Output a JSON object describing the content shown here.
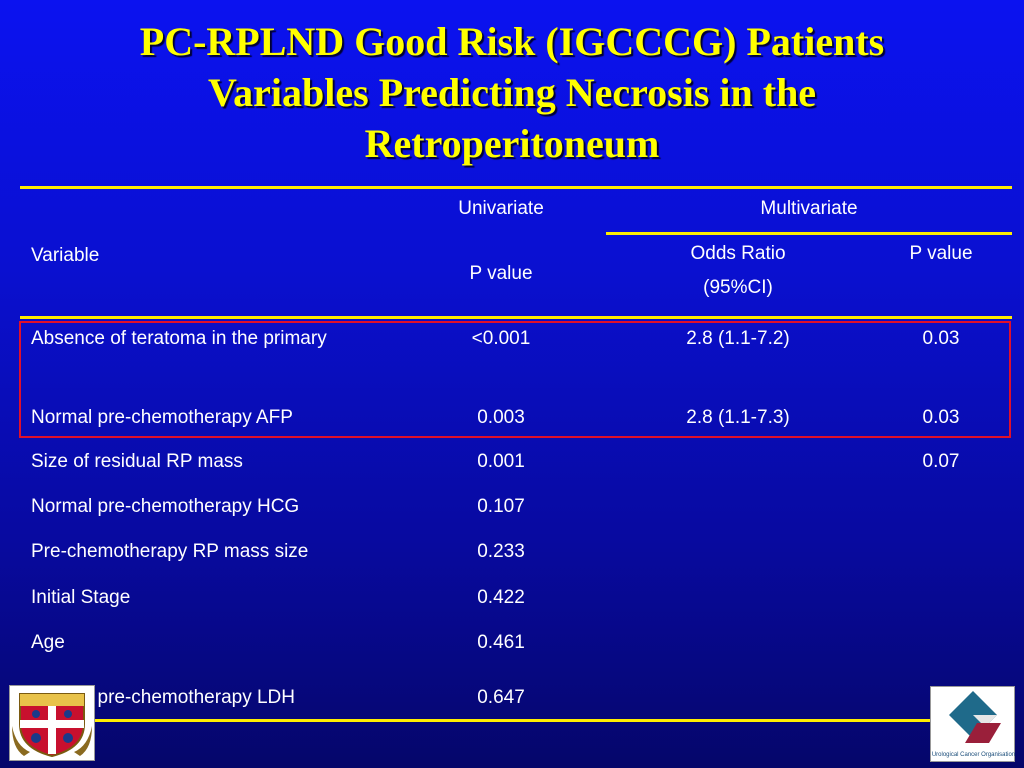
{
  "title": {
    "line1": "PC-RPLND Good Risk (IGCCCG) Patients",
    "line2": "Variables Predicting Necrosis in the",
    "line3": "Retroperitoneum"
  },
  "headers": {
    "univariate": "Univariate",
    "multivariate": "Multivariate",
    "variable": "Variable",
    "uni_p": "P value",
    "odds_ratio_line1": "Odds Ratio",
    "odds_ratio_line2": "(95%CI)",
    "multi_p": "P value"
  },
  "rows": [
    {
      "variable": "Absence of teratoma in the primary",
      "uni_p": "<0.001",
      "odds_ratio": "2.8 (1.1-7.2)",
      "multi_p": "0.03"
    },
    {
      "variable": "Normal pre-chemotherapy AFP",
      "uni_p": "0.003",
      "odds_ratio": "2.8 (1.1-7.3)",
      "multi_p": "0.03"
    },
    {
      "variable": "Size of residual RP mass",
      "uni_p": "0.001",
      "odds_ratio": "",
      "multi_p": "0.07"
    },
    {
      "variable": "Normal pre-chemotherapy HCG",
      "uni_p": "0.107",
      "odds_ratio": "",
      "multi_p": ""
    },
    {
      "variable": "Pre-chemotherapy RP mass size",
      "uni_p": "0.233",
      "odds_ratio": "",
      "multi_p": ""
    },
    {
      "variable": "Initial Stage",
      "uni_p": "0.422",
      "odds_ratio": "",
      "multi_p": ""
    },
    {
      "variable": "Age",
      "uni_p": "0.461",
      "odds_ratio": "",
      "multi_p": ""
    },
    {
      "variable": "Normal pre-chemotherapy LDH",
      "uni_p": "0.647",
      "odds_ratio": "",
      "multi_p": ""
    }
  ],
  "logos": {
    "left": "university-crest-logo",
    "right": "urological-cancer-organisation-logo",
    "right_caption": "Urological Cancer Organisation"
  },
  "colors": {
    "title": "#ffff00",
    "rules": "#ffee00",
    "highlight_box": "#e0102a",
    "background_top": "#0b12f0",
    "background_bottom": "#05066a"
  }
}
